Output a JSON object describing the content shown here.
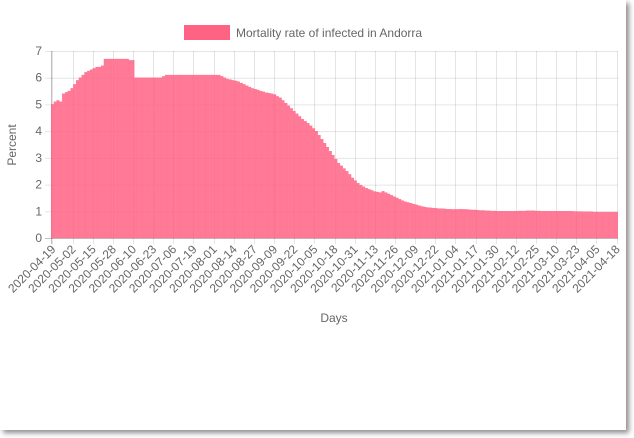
{
  "chart_data": {
    "type": "bar",
    "legend": {
      "label": "Mortality rate of infected in Andorra",
      "position": "top",
      "color": "#ff6384"
    },
    "xlabel": "Days",
    "ylabel": "Percent",
    "ylim": [
      0,
      7
    ],
    "y_ticks": [
      "0",
      "1",
      "2",
      "3",
      "4",
      "5",
      "6",
      "7"
    ],
    "grid": true,
    "bar_color": "#ff6384",
    "x_tick_labels": [
      "2020-04-19",
      "2020-05-02",
      "2020-05-15",
      "2020-05-28",
      "2020-06-10",
      "2020-06-23",
      "2020-07-06",
      "2020-07-19",
      "2020-08-01",
      "2020-08-14",
      "2020-08-27",
      "2020-09-09",
      "2020-09-22",
      "2020-10-05",
      "2020-10-18",
      "2020-10-31",
      "2020-11-13",
      "2020-11-26",
      "2020-12-09",
      "2020-12-22",
      "2021-01-04",
      "2021-01-17",
      "2021-01-30",
      "2021-02-12",
      "2021-02-25",
      "2021-03-10",
      "2021-03-23",
      "2021-04-05",
      "2021-04-18"
    ],
    "values": [
      5.0,
      5.1,
      5.15,
      5.1,
      5.4,
      5.45,
      5.5,
      5.6,
      5.75,
      5.9,
      6.0,
      6.1,
      6.2,
      6.25,
      6.3,
      6.35,
      6.4,
      6.4,
      6.45,
      6.7,
      6.7,
      6.7,
      6.7,
      6.7,
      6.7,
      6.7,
      6.7,
      6.7,
      6.65,
      6.65,
      6.0,
      6.0,
      6.0,
      6.0,
      6.0,
      6.0,
      6.0,
      6.0,
      6.0,
      6.0,
      6.05,
      6.1,
      6.1,
      6.1,
      6.1,
      6.1,
      6.1,
      6.1,
      6.1,
      6.1,
      6.1,
      6.1,
      6.1,
      6.1,
      6.1,
      6.1,
      6.1,
      6.1,
      6.1,
      6.1,
      6.1,
      6.05,
      6.0,
      5.95,
      5.93,
      5.9,
      5.88,
      5.85,
      5.8,
      5.75,
      5.7,
      5.65,
      5.6,
      5.57,
      5.54,
      5.5,
      5.47,
      5.44,
      5.42,
      5.4,
      5.37,
      5.3,
      5.25,
      5.15,
      5.05,
      4.95,
      4.85,
      4.75,
      4.65,
      4.55,
      4.45,
      4.37,
      4.3,
      4.2,
      4.1,
      4.0,
      3.85,
      3.7,
      3.55,
      3.4,
      3.25,
      3.1,
      2.95,
      2.8,
      2.7,
      2.6,
      2.5,
      2.38,
      2.25,
      2.15,
      2.05,
      1.98,
      1.92,
      1.86,
      1.82,
      1.78,
      1.74,
      1.72,
      1.7,
      1.75,
      1.7,
      1.65,
      1.6,
      1.55,
      1.5,
      1.45,
      1.4,
      1.36,
      1.33,
      1.3,
      1.27,
      1.24,
      1.21,
      1.18,
      1.16,
      1.14,
      1.13,
      1.12,
      1.11,
      1.1,
      1.1,
      1.09,
      1.08,
      1.08,
      1.07,
      1.07,
      1.07,
      1.08,
      1.07,
      1.07,
      1.06,
      1.05,
      1.05,
      1.04,
      1.03,
      1.03,
      1.02,
      1.02,
      1.01,
      1.01,
      1.0,
      1.0,
      1.0,
      1.0,
      1.0,
      1.0,
      1.0,
      1.0,
      1.01,
      1.01,
      1.01,
      1.02,
      1.02,
      1.02,
      1.01,
      1.01,
      1.0,
      1.0,
      1.0,
      1.0,
      1.0,
      1.0,
      1.0,
      1.0,
      1.0,
      1.0,
      1.0,
      1.0,
      0.99,
      0.99,
      0.99,
      0.98,
      0.98,
      0.98,
      0.98,
      0.97,
      0.97,
      0.97,
      0.97,
      0.97,
      0.97,
      0.97,
      0.97,
      0.97
    ]
  }
}
